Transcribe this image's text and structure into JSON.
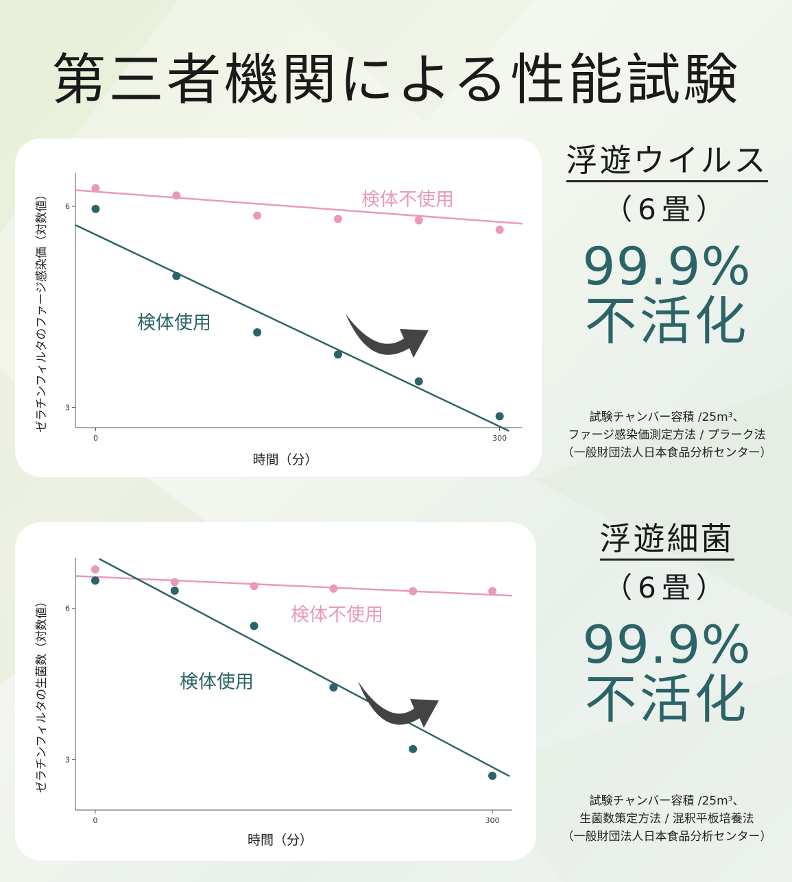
{
  "title": "第三者機関による性能試験",
  "colors": {
    "untreated": "#e99ab8",
    "treated": "#2b6468",
    "accent_text": "#2b6468",
    "arrow": "#444444"
  },
  "panels": [
    {
      "title": "浮遊ウイルス",
      "subtitle": "（6畳）",
      "percent": "99.9%",
      "result": "不活化",
      "notes": [
        "試験チャンバー容積 /25m³、",
        "ファージ感染価測定方法 / プラーク法",
        "（一般財団法人日本食品分析センター）"
      ]
    },
    {
      "title": "浮遊細菌",
      "subtitle": "（6畳）",
      "percent": "99.9%",
      "result": "不活化",
      "notes": [
        "試験チャンバー容積 /25m³、",
        "生菌数策定方法 / 混釈平板培養法",
        "（一般財団法人日本食品分析センター）"
      ]
    }
  ],
  "chart_data": [
    {
      "type": "scatter",
      "xlabel": "時間（分）",
      "ylabel": "ゼラチンフィルタのファージ感染価（対数値）",
      "x_ticks": [
        0,
        300
      ],
      "y_ticks": [
        3,
        6
      ],
      "xlim": [
        -15,
        317
      ],
      "ylim": [
        2.7,
        6.5
      ],
      "grid": false,
      "series": [
        {
          "name": "検体不使用",
          "color": "#e99ab8",
          "x": [
            0,
            60,
            120,
            180,
            240,
            300
          ],
          "y": [
            6.27,
            6.16,
            5.86,
            5.81,
            5.79,
            5.65
          ],
          "trend": {
            "x": [
              -15,
              317
            ],
            "y": [
              6.24,
              5.74
            ]
          }
        },
        {
          "name": "検体使用",
          "color": "#2b6468",
          "x": [
            0,
            60,
            120,
            180,
            240,
            300
          ],
          "y": [
            5.96,
            4.96,
            4.12,
            3.79,
            3.39,
            2.87
          ],
          "trend": {
            "x": [
              -15,
              307
            ],
            "y": [
              5.72,
              2.65
            ]
          }
        }
      ]
    },
    {
      "type": "scatter",
      "xlabel": "時間（分）",
      "ylabel": "ゼラチンフィルタの生菌数（対数値）",
      "x_ticks": [
        0,
        300
      ],
      "y_ticks": [
        3,
        6
      ],
      "xlim": [
        -15,
        315
      ],
      "ylim": [
        2.0,
        7.0
      ],
      "grid": false,
      "series": [
        {
          "name": "検体不使用",
          "color": "#e99ab8",
          "x": [
            0,
            60,
            120,
            180,
            240,
            300
          ],
          "y": [
            6.77,
            6.52,
            6.44,
            6.39,
            6.34,
            6.34
          ],
          "trend": {
            "x": [
              -15,
              315
            ],
            "y": [
              6.64,
              6.25
            ]
          }
        },
        {
          "name": "検体使用",
          "color": "#2b6468",
          "x": [
            0,
            60,
            120,
            180,
            240,
            300
          ],
          "y": [
            6.55,
            6.35,
            5.65,
            4.43,
            3.21,
            2.68
          ],
          "trend": {
            "x": [
              3,
              313
            ],
            "y": [
              6.98,
              2.67
            ]
          }
        }
      ]
    }
  ]
}
